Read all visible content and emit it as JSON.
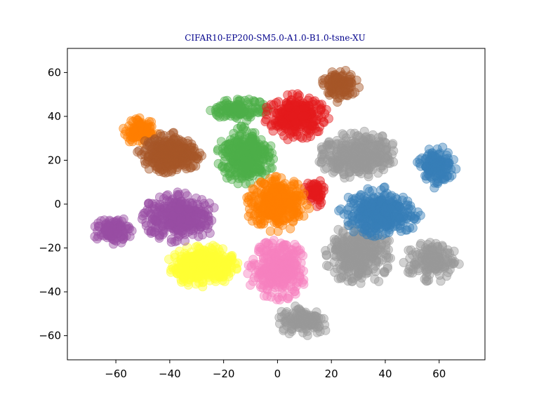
{
  "chart_data": {
    "type": "scatter",
    "title": "CIFAR10-EP200-SM5.0-A1.0-B1.0-tsne-XU",
    "xlabel": "",
    "ylabel": "",
    "xlim": [
      -78,
      77
    ],
    "ylim": [
      -71,
      71
    ],
    "xticks": [
      -60,
      -40,
      -20,
      0,
      20,
      40,
      60
    ],
    "yticks": [
      -60,
      -40,
      -20,
      0,
      20,
      40,
      60
    ],
    "xtick_labels": [
      "−60",
      "−40",
      "−20",
      "0",
      "20",
      "40",
      "60"
    ],
    "ytick_labels": [
      "−60",
      "−40",
      "−20",
      "0",
      "20",
      "40",
      "60"
    ],
    "grid": false,
    "marker_alpha": 0.45,
    "clusters": [
      {
        "center": [
          -28,
          -28
        ],
        "spread": [
          13,
          9
        ],
        "count": 360,
        "color": "#ffff33"
      },
      {
        "center": [
          0,
          -30
        ],
        "spread": [
          11,
          13
        ],
        "count": 340,
        "color": "#f781bf"
      },
      {
        "center": [
          -36,
          -6
        ],
        "spread": [
          14,
          11
        ],
        "count": 360,
        "color": "#984ea3"
      },
      {
        "center": [
          -61,
          -12
        ],
        "spread": [
          7,
          6
        ],
        "count": 110,
        "color": "#984ea3"
      },
      {
        "center": [
          -51,
          33
        ],
        "spread": [
          6,
          6
        ],
        "count": 90,
        "color": "#ff7f00"
      },
      {
        "center": [
          -40,
          23
        ],
        "spread": [
          11,
          9
        ],
        "count": 340,
        "color": "#a65628"
      },
      {
        "center": [
          23,
          54
        ],
        "spread": [
          7,
          7
        ],
        "count": 110,
        "color": "#a65628"
      },
      {
        "center": [
          -12,
          22
        ],
        "spread": [
          10,
          13
        ],
        "count": 340,
        "color": "#4daf4a"
      },
      {
        "center": [
          -14,
          43
        ],
        "spread": [
          10,
          5
        ],
        "count": 130,
        "color": "#4daf4a"
      },
      {
        "center": [
          7,
          40
        ],
        "spread": [
          11,
          10
        ],
        "count": 300,
        "color": "#e41a1c"
      },
      {
        "center": [
          14,
          5
        ],
        "spread": [
          4,
          6
        ],
        "count": 60,
        "color": "#e41a1c"
      },
      {
        "center": [
          30,
          22
        ],
        "spread": [
          14,
          11
        ],
        "count": 330,
        "color": "#999999"
      },
      {
        "center": [
          30,
          -23
        ],
        "spread": [
          12,
          14
        ],
        "count": 330,
        "color": "#999999"
      },
      {
        "center": [
          57,
          -26
        ],
        "spread": [
          10,
          9
        ],
        "count": 150,
        "color": "#999999"
      },
      {
        "center": [
          10,
          -53
        ],
        "spread": [
          10,
          7
        ],
        "count": 130,
        "color": "#999999"
      },
      {
        "center": [
          0,
          0
        ],
        "spread": [
          11,
          12
        ],
        "count": 330,
        "color": "#ff7f00"
      },
      {
        "center": [
          38,
          -4
        ],
        "spread": [
          14,
          11
        ],
        "count": 340,
        "color": "#377eb8"
      },
      {
        "center": [
          59,
          17
        ],
        "spread": [
          7,
          9
        ],
        "count": 130,
        "color": "#377eb8"
      }
    ]
  }
}
